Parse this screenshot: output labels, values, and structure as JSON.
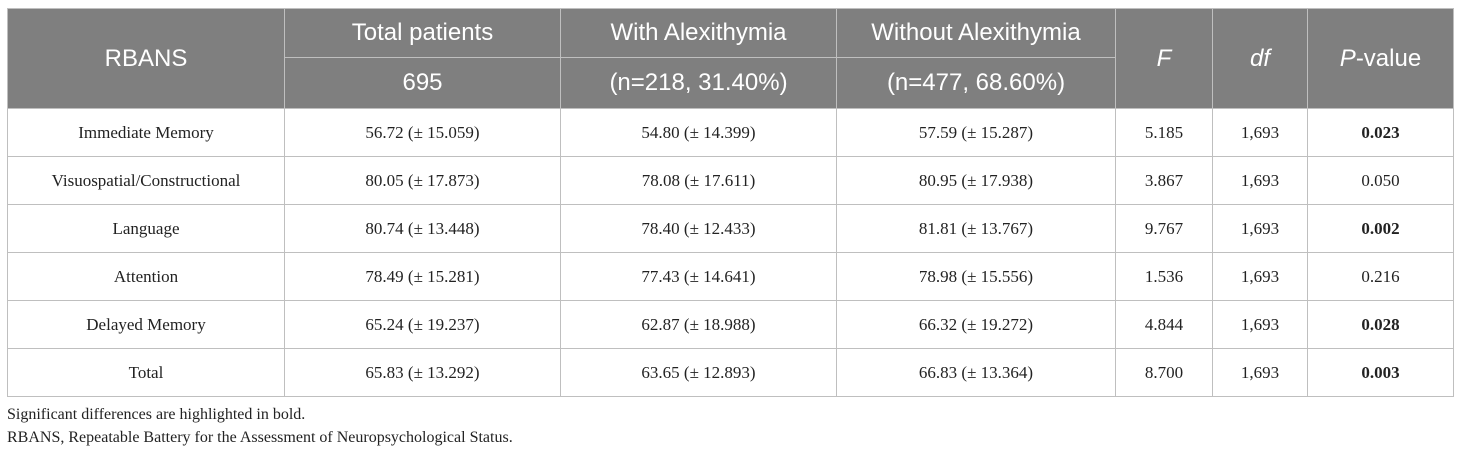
{
  "table": {
    "header": {
      "row_label": "RBANS",
      "total": {
        "title": "Total patients",
        "sub": "695"
      },
      "with": {
        "title": "With Alexithymia",
        "sub": "(n=218, 31.40%)"
      },
      "without": {
        "title": "Without Alexithymia",
        "sub": "(n=477, 68.60%)"
      },
      "f": "F",
      "df": "df",
      "p_italic": "P",
      "p_rest": "-value"
    },
    "rows": [
      {
        "label": "Immediate Memory",
        "total": "56.72 (± 15.059)",
        "with": "54.80 (± 14.399)",
        "without": "57.59 (± 15.287)",
        "f": "5.185",
        "df": "1,693",
        "p": "0.023",
        "p_bold": true
      },
      {
        "label": "Visuospatial/Constructional",
        "total": "80.05 (± 17.873)",
        "with": "78.08 (± 17.611)",
        "without": "80.95 (± 17.938)",
        "f": "3.867",
        "df": "1,693",
        "p": "0.050",
        "p_bold": false
      },
      {
        "label": "Language",
        "total": "80.74 (± 13.448)",
        "with": "78.40 (± 12.433)",
        "without": "81.81 (± 13.767)",
        "f": "9.767",
        "df": "1,693",
        "p": "0.002",
        "p_bold": true
      },
      {
        "label": "Attention",
        "total": "78.49 (± 15.281)",
        "with": "77.43 (± 14.641)",
        "without": "78.98 (± 15.556)",
        "f": "1.536",
        "df": "1,693",
        "p": "0.216",
        "p_bold": false
      },
      {
        "label": "Delayed Memory",
        "total": "65.24 (± 19.237)",
        "with": "62.87 (± 18.988)",
        "without": "66.32 (± 19.272)",
        "f": "4.844",
        "df": "1,693",
        "p": "0.028",
        "p_bold": true
      },
      {
        "label": "Total",
        "total": "65.83 (± 13.292)",
        "with": "63.65 (± 12.893)",
        "without": "66.83 (± 13.364)",
        "f": "8.700",
        "df": "1,693",
        "p": "0.003",
        "p_bold": true
      }
    ]
  },
  "notes": [
    "Significant differences are highlighted in bold.",
    "RBANS, Repeatable Battery for the Assessment of Neuropsychological Status."
  ],
  "colors": {
    "header_bg": "#7f7f7f",
    "border": "#bfbfbf"
  }
}
